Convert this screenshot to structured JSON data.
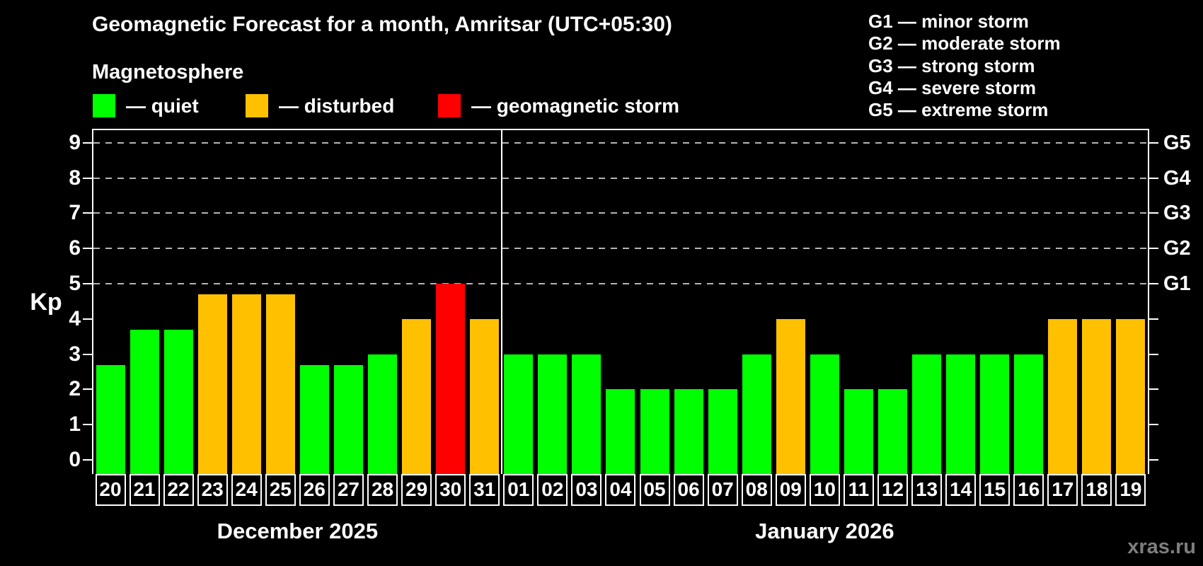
{
  "header": {
    "title": "Geomagnetic Forecast for a month, Amritsar (UTC+05:30)",
    "subtitle": "Magnetosphere"
  },
  "legend": {
    "items": [
      {
        "text": "— quiet",
        "state": "quiet",
        "color": "#00ff00"
      },
      {
        "text": "— disturbed",
        "state": "disturbed",
        "color": "#ffc000"
      },
      {
        "text": "— geomagnetic storm",
        "state": "storm",
        "color": "#ff0000"
      }
    ]
  },
  "g_legend": {
    "lines": [
      "G1 — minor storm",
      "G2 — moderate storm",
      "G3 — strong storm",
      "G4 — severe storm",
      "G5 — extreme storm"
    ]
  },
  "watermark": "xras.ru",
  "chart_data": {
    "type": "bar",
    "title": "Geomagnetic Forecast for a month, Amritsar (UTC+05:30)",
    "ylabel": "Kp",
    "ylim": [
      0,
      9.8
    ],
    "y_ticks": [
      0,
      1,
      2,
      3,
      4,
      5,
      6,
      7,
      8,
      9
    ],
    "gridlines_kp": [
      5,
      6,
      7,
      8,
      9
    ],
    "g_scale": [
      {
        "label": "G1",
        "kp": 5
      },
      {
        "label": "G2",
        "kp": 6
      },
      {
        "label": "G3",
        "kp": 7
      },
      {
        "label": "G4",
        "kp": 8
      },
      {
        "label": "G5",
        "kp": 9
      }
    ],
    "state_colors": {
      "quiet": "#00ff00",
      "disturbed": "#ffc000",
      "storm": "#ff0000"
    },
    "panels": [
      {
        "label": "December 2025",
        "categories": [
          "20",
          "21",
          "22",
          "23",
          "24",
          "25",
          "26",
          "27",
          "28",
          "29",
          "30",
          "31"
        ],
        "values": [
          2.7,
          3.7,
          3.7,
          4.7,
          4.7,
          4.7,
          2.7,
          2.7,
          3.0,
          4.0,
          5.0,
          4.0
        ],
        "states": [
          "quiet",
          "quiet",
          "quiet",
          "disturbed",
          "disturbed",
          "disturbed",
          "quiet",
          "quiet",
          "quiet",
          "disturbed",
          "storm",
          "disturbed"
        ]
      },
      {
        "label": "January 2026",
        "categories": [
          "01",
          "02",
          "03",
          "04",
          "05",
          "06",
          "07",
          "08",
          "09",
          "10",
          "11",
          "12",
          "13",
          "14",
          "15",
          "16",
          "17",
          "18",
          "19"
        ],
        "values": [
          3.0,
          3.0,
          3.0,
          2.0,
          2.0,
          2.0,
          2.0,
          3.0,
          4.0,
          3.0,
          2.0,
          2.0,
          3.0,
          3.0,
          3.0,
          3.0,
          4.0,
          4.0,
          4.0
        ],
        "states": [
          "quiet",
          "quiet",
          "quiet",
          "quiet",
          "quiet",
          "quiet",
          "quiet",
          "quiet",
          "disturbed",
          "quiet",
          "quiet",
          "quiet",
          "quiet",
          "quiet",
          "quiet",
          "quiet",
          "disturbed",
          "disturbed",
          "disturbed"
        ]
      }
    ]
  }
}
